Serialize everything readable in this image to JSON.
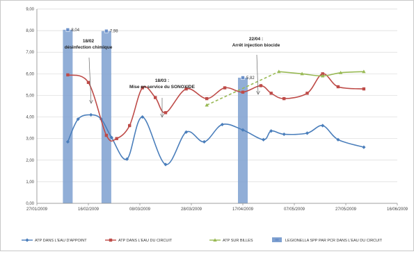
{
  "chart_data": {
    "type": "line",
    "title": "",
    "xlabel": "",
    "ylabel": "",
    "ylim": [
      0,
      9
    ],
    "y_ticks": [
      "0,00",
      "1,00",
      "2,00",
      "3,00",
      "4,00",
      "5,00",
      "6,00",
      "7,00",
      "8,00",
      "9,00"
    ],
    "y_tick_values": [
      0,
      1,
      2,
      3,
      4,
      5,
      6,
      7,
      8,
      9
    ],
    "xlim": [
      "2009-01-27",
      "2009-06-16"
    ],
    "x_ticks": [
      "27/01/2009",
      "16/02/2009",
      "08/03/2009",
      "28/03/2009",
      "17/04/2009",
      "07/05/2009",
      "27/05/2009",
      "16/06/2009"
    ],
    "x_tick_dates": [
      "2009-01-27",
      "2009-02-16",
      "2009-03-08",
      "2009-03-28",
      "2009-04-17",
      "2009-05-07",
      "2009-05-27",
      "2009-06-16"
    ],
    "grid": "horizontal",
    "legend_position": "bottom",
    "colors": {
      "appoint": "#4a7ebb",
      "circuit": "#be4b48",
      "billes": "#98b954",
      "legionella": "#7ea0d0"
    },
    "series": [
      {
        "name": "ATP DANS L'EAU D'APPOINT",
        "kind": "line",
        "points": [
          {
            "x": "2009-02-08",
            "y": 2.85
          },
          {
            "x": "2009-02-12",
            "y": 3.9
          },
          {
            "x": "2009-02-17",
            "y": 4.1
          },
          {
            "x": "2009-02-21",
            "y": 3.9
          },
          {
            "x": "2009-02-25",
            "y": 3.05
          },
          {
            "x": "2009-03-03",
            "y": 2.05
          },
          {
            "x": "2009-03-09",
            "y": 4.0
          },
          {
            "x": "2009-03-18",
            "y": 1.8
          },
          {
            "x": "2009-03-26",
            "y": 3.3
          },
          {
            "x": "2009-04-02",
            "y": 2.85
          },
          {
            "x": "2009-04-09",
            "y": 3.65
          },
          {
            "x": "2009-04-17",
            "y": 3.4
          },
          {
            "x": "2009-04-25",
            "y": 2.95
          },
          {
            "x": "2009-04-28",
            "y": 3.35
          },
          {
            "x": "2009-05-03",
            "y": 3.2
          },
          {
            "x": "2009-05-12",
            "y": 3.25
          },
          {
            "x": "2009-05-18",
            "y": 3.6
          },
          {
            "x": "2009-05-24",
            "y": 2.95
          },
          {
            "x": "2009-06-03",
            "y": 2.6
          }
        ]
      },
      {
        "name": "ATP DANS L'EAU DU CIRCUIT",
        "kind": "line",
        "points": [
          {
            "x": "2009-02-08",
            "y": 5.95
          },
          {
            "x": "2009-02-16",
            "y": 5.6
          },
          {
            "x": "2009-02-23",
            "y": 3.15
          },
          {
            "x": "2009-02-27",
            "y": 3.0
          },
          {
            "x": "2009-03-04",
            "y": 3.6
          },
          {
            "x": "2009-03-09",
            "y": 5.35
          },
          {
            "x": "2009-03-14",
            "y": 4.9
          },
          {
            "x": "2009-03-18",
            "y": 4.2
          },
          {
            "x": "2009-03-26",
            "y": 5.3
          },
          {
            "x": "2009-04-03",
            "y": 4.85
          },
          {
            "x": "2009-04-10",
            "y": 5.35
          },
          {
            "x": "2009-04-17",
            "y": 5.15
          },
          {
            "x": "2009-04-24",
            "y": 5.45
          },
          {
            "x": "2009-04-28",
            "y": 5.1
          },
          {
            "x": "2009-05-03",
            "y": 4.85
          },
          {
            "x": "2009-05-12",
            "y": 5.1
          },
          {
            "x": "2009-05-18",
            "y": 6.0
          },
          {
            "x": "2009-05-24",
            "y": 5.4
          },
          {
            "x": "2009-06-03",
            "y": 5.3
          }
        ]
      },
      {
        "name": "ATP SUR BILLES",
        "kind": "line",
        "dashed_lead": true,
        "points": [
          {
            "x": "2009-04-03",
            "y": 4.55
          },
          {
            "x": "2009-05-01",
            "y": 6.1
          },
          {
            "x": "2009-05-10",
            "y": 6.0
          },
          {
            "x": "2009-05-18",
            "y": 5.9
          },
          {
            "x": "2009-05-25",
            "y": 6.05
          },
          {
            "x": "2009-06-03",
            "y": 6.1
          }
        ]
      },
      {
        "name": "LEGIONELLA SPP PAR PCR DANS L'EAU DU CIRCUIT",
        "kind": "bar",
        "points": [
          {
            "x": "2009-02-08",
            "y": 8.04,
            "label": "8,04"
          },
          {
            "x": "2009-02-23",
            "y": 7.98,
            "label": "7,98"
          },
          {
            "x": "2009-04-17",
            "y": 5.82,
            "label": "5,82"
          }
        ]
      }
    ],
    "annotations": [
      {
        "text": [
          "18/02",
          "désinfection chimique"
        ]
      },
      {
        "text": [
          "18/03 :",
          "Mise en service du SONOXIDE"
        ]
      },
      {
        "text": [
          "22/04 :",
          "Arrêt injection biocide"
        ]
      }
    ]
  }
}
